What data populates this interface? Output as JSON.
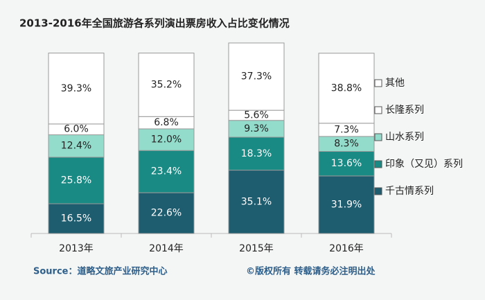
{
  "chart_data": {
    "type": "stacked_bar",
    "title": "2013-2016年全国旅游各系列演出票房收入占比变化情况",
    "categories": [
      "2013年",
      "2014年",
      "2015年",
      "2016年"
    ],
    "series": [
      {
        "name": "千古情系列",
        "color": "#1e5c70",
        "values": [
          16.5,
          22.6,
          35.1,
          31.9
        ],
        "value_labels": [
          "16.5%",
          "22.6%",
          "35.1%",
          "31.9%"
        ]
      },
      {
        "name": "印象（又见）系列",
        "color": "#1a8a84",
        "values": [
          25.8,
          23.4,
          18.3,
          13.6
        ],
        "value_labels": [
          "25.8%",
          "23.4%",
          "18.3%",
          "13.6%"
        ]
      },
      {
        "name": "山水系列",
        "color": "#93dccb",
        "values": [
          12.4,
          12.0,
          9.3,
          8.3
        ],
        "value_labels": [
          "12.4%",
          "12.0%",
          "9.3%",
          "8.3%"
        ]
      },
      {
        "name": "长隆系列",
        "color": "#ffffff",
        "values": [
          6.0,
          6.8,
          5.6,
          7.3
        ],
        "value_labels": [
          "6.0%",
          "6.8%",
          "5.6%",
          "7.3%"
        ]
      },
      {
        "name": "其他",
        "color": "#ffffff",
        "values": [
          39.3,
          35.2,
          37.3,
          38.8
        ],
        "value_labels": [
          "39.3%",
          "35.2%",
          "37.3%",
          "38.8%"
        ]
      }
    ],
    "source": "Source：道略文旅产业研究中心",
    "note": "©版权所有  转载请务必注明出处"
  }
}
